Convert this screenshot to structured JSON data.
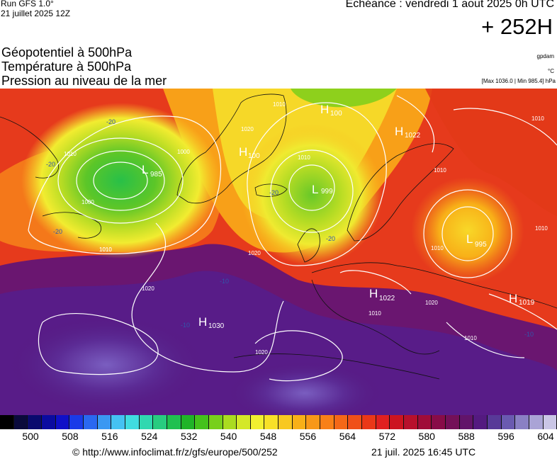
{
  "header": {
    "run": "Run GFS 1.0°",
    "run_date": "21 juillet 2025 12Z",
    "valid": "Echéance : vendredi 1 aout 2025 0h UTC",
    "lead": "+ 252H"
  },
  "titles": [
    "Géopotentiel à 500hPa",
    "Température à 500hPa",
    "Pression au niveau de la mer"
  ],
  "units": {
    "geopotential": "gpdam",
    "temperature": "°C",
    "maxmin": "[Max 1036.0 | Min 985.4] hPa"
  },
  "pressure_centers": [
    {
      "type": "L",
      "value": "985"
    },
    {
      "type": "H",
      "value": "1030"
    },
    {
      "type": "H",
      "value": "100"
    },
    {
      "type": "H",
      "value": "100"
    },
    {
      "type": "L",
      "value": "999"
    },
    {
      "type": "H",
      "value": "1022"
    },
    {
      "type": "L",
      "value": "995"
    },
    {
      "type": "H",
      "value": "1022"
    },
    {
      "type": "H",
      "value": "1019"
    }
  ],
  "isobar_labels": [
    "1000",
    "1010",
    "1020",
    "1020",
    "1020",
    "1010",
    "1010",
    "1010",
    "1010",
    "1020",
    "1010",
    "1010",
    "1000",
    "1010",
    "1010",
    "1010",
    "1020",
    "1010"
  ],
  "temperature_labels": [
    "-20",
    "-20",
    "-20",
    "-20",
    "-10",
    "-10",
    "-20",
    "-10"
  ],
  "colorbar": {
    "colors": [
      "#000000",
      "#0a0a3c",
      "#0a0a6e",
      "#0b0ba0",
      "#1010c8",
      "#1a3ae8",
      "#2a68f0",
      "#3a98f2",
      "#44c2f2",
      "#40dce0",
      "#30d8b0",
      "#28cc80",
      "#20c050",
      "#20b428",
      "#44c21c",
      "#78d01c",
      "#aadc20",
      "#d4e828",
      "#f2f030",
      "#f8e028",
      "#f8c820",
      "#f8b018",
      "#f89818",
      "#f88018",
      "#f46818",
      "#f05018",
      "#ea3818",
      "#e02020",
      "#cc1420",
      "#b8102c",
      "#a00c38",
      "#880c48",
      "#741058",
      "#62146a",
      "#541a80",
      "#583a98",
      "#6a5ab0",
      "#8a80c4",
      "#aaa4d6",
      "#cac6e6"
    ],
    "ticks": [
      {
        "label": "500",
        "value": 500
      },
      {
        "label": "508",
        "value": 508
      },
      {
        "label": "516",
        "value": 516
      },
      {
        "label": "524",
        "value": 524
      },
      {
        "label": "532",
        "value": 532
      },
      {
        "label": "540",
        "value": 540
      },
      {
        "label": "548",
        "value": 548
      },
      {
        "label": "556",
        "value": 556
      },
      {
        "label": "564",
        "value": 564
      },
      {
        "label": "572",
        "value": 572
      },
      {
        "label": "580",
        "value": 580
      },
      {
        "label": "588",
        "value": 588
      },
      {
        "label": "596",
        "value": 596
      },
      {
        "label": "604",
        "value": 604
      }
    ]
  },
  "footer": {
    "url": "© http://www.infoclimat.fr/z/gfs/europe/500/252",
    "generated": "21 juil. 2025 16:45 UTC"
  }
}
